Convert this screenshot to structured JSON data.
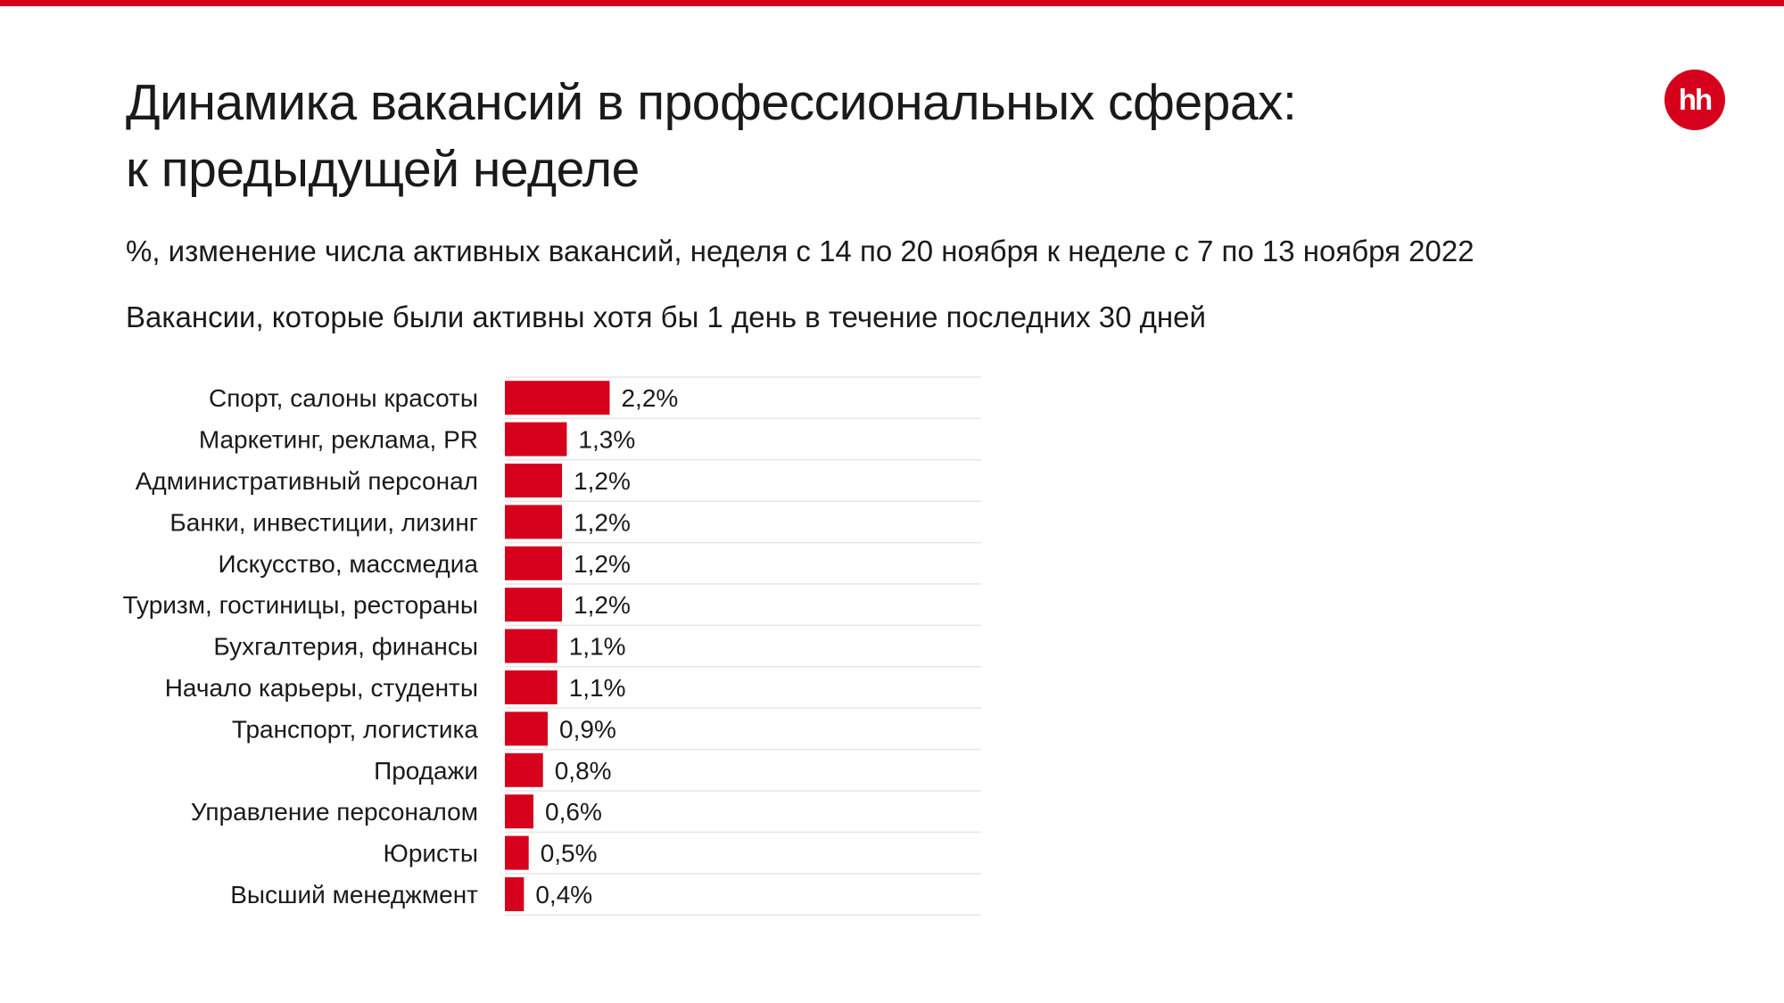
{
  "colors": {
    "accent": "#d6001c",
    "text": "#1a1a1a",
    "gridline": "#e6e6e6"
  },
  "header": {
    "title_line1": "Динамика вакансий в профессиональных сферах:",
    "title_line2": "к предыдущей неделе",
    "subtitle": "%, изменение числа активных вакансий, неделя с 14 по 20 ноября к неделе с 7 по 13 ноября 2022",
    "note": "Вакансии, которые были активны хотя бы 1 день в течение последних 30 дней"
  },
  "logo": {
    "text": "hh"
  },
  "chart_data": {
    "type": "bar",
    "orientation": "horizontal",
    "categories": [
      "Спорт, салоны красоты",
      "Маркетинг, реклама, PR",
      "Административный персонал",
      "Банки, инвестиции, лизинг",
      "Искусство, массмедиа",
      "Туризм, гостиницы, рестораны",
      "Бухгалтерия, финансы",
      "Начало карьеры, студенты",
      "Транспорт, логистика",
      "Продажи",
      "Управление персоналом",
      "Юристы",
      "Высший менеджмент"
    ],
    "values": [
      2.2,
      1.3,
      1.2,
      1.2,
      1.2,
      1.2,
      1.1,
      1.1,
      0.9,
      0.8,
      0.6,
      0.5,
      0.4
    ],
    "value_labels": [
      "2,2%",
      "1,3%",
      "1,2%",
      "1,2%",
      "1,2%",
      "1,2%",
      "1,1%",
      "1,1%",
      "0,9%",
      "0,8%",
      "0,6%",
      "0,5%",
      "0,4%"
    ],
    "xlim": [
      0,
      10
    ],
    "grid": "horizontal separators",
    "legend": "none",
    "title": "",
    "xlabel": "",
    "ylabel": ""
  }
}
